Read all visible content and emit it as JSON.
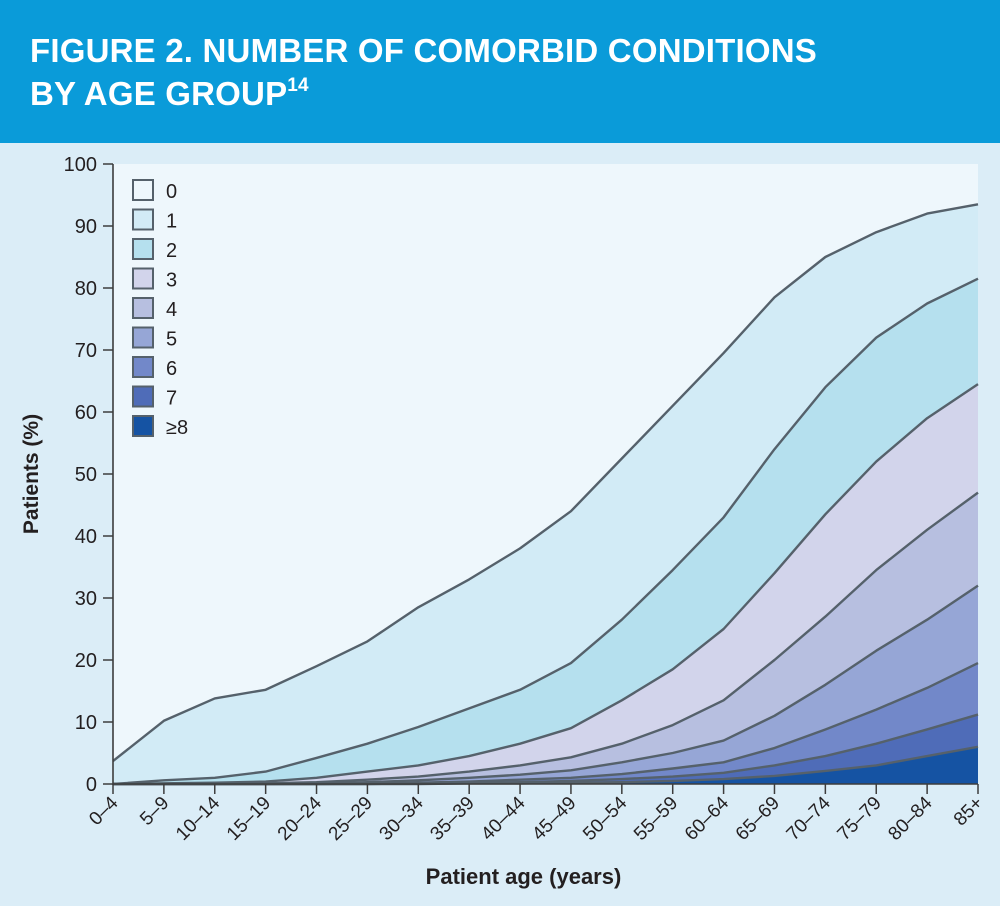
{
  "figure": {
    "title_line1": "FIGURE 2. NUMBER OF COMORBID CONDITIONS",
    "title_line2": "BY AGE GROUP",
    "reference": "14"
  },
  "colors": {
    "header_bg": "#0a9bd9",
    "panel_bg": "#dbedf7",
    "plot_bg": "#eef7fc",
    "outline": "#55616b",
    "layer_fills": [
      "#eef7fc",
      "#d2ebf6",
      "#b5e0ee",
      "#d2d4eb",
      "#b7bfe0",
      "#96a6d6",
      "#7288c9",
      "#4f6cb8",
      "#1553a3"
    ]
  },
  "chart_data": {
    "type": "area",
    "stacking": "cumulative",
    "title": "FIGURE 2. NUMBER OF COMORBID CONDITIONS BY AGE GROUP",
    "xlabel": "Patient age (years)",
    "ylabel": "Patients (%)",
    "ylim": [
      0,
      100
    ],
    "yticks": [
      0,
      10,
      20,
      30,
      40,
      50,
      60,
      70,
      80,
      90,
      100
    ],
    "grid": false,
    "legend_position": "top-left",
    "categories": [
      "0–4",
      "5–9",
      "10–14",
      "15–19",
      "20–24",
      "25–29",
      "30–34",
      "35–39",
      "40–44",
      "45–49",
      "50–54",
      "55–59",
      "60–64",
      "65–69",
      "70–74",
      "75–79",
      "80–84",
      "85+"
    ],
    "series": [
      {
        "name": "0",
        "cumulative_top": [
          100,
          100,
          100,
          100,
          100,
          100,
          100,
          100,
          100,
          100,
          100,
          100,
          100,
          100,
          100,
          100,
          100,
          100
        ]
      },
      {
        "name": "1",
        "cumulative_top": [
          3.7,
          10.2,
          13.8,
          15.2,
          19,
          23,
          28.5,
          33,
          38,
          44,
          52.5,
          61,
          69.5,
          78.5,
          85,
          89,
          92,
          93.5
        ]
      },
      {
        "name": "2",
        "cumulative_top": [
          0,
          0.6,
          1,
          2,
          4.2,
          6.5,
          9.2,
          12.2,
          15.2,
          19.5,
          26.5,
          34.5,
          43,
          54,
          64,
          72,
          77.5,
          81.5
        ]
      },
      {
        "name": "3",
        "cumulative_top": [
          0,
          0.1,
          0.2,
          0.4,
          1,
          2,
          3,
          4.5,
          6.5,
          9,
          13.5,
          18.5,
          25,
          34,
          43.5,
          52,
          59,
          64.5
        ]
      },
      {
        "name": "4",
        "cumulative_top": [
          0,
          0,
          0,
          0.1,
          0.3,
          0.7,
          1.2,
          2,
          3,
          4.3,
          6.5,
          9.5,
          13.5,
          20,
          27,
          34.5,
          41,
          47
        ]
      },
      {
        "name": "5",
        "cumulative_top": [
          0,
          0,
          0,
          0,
          0.1,
          0.3,
          0.6,
          1,
          1.5,
          2.2,
          3.5,
          5,
          7,
          11,
          16,
          21.5,
          26.5,
          32
        ]
      },
      {
        "name": "6",
        "cumulative_top": [
          0,
          0,
          0,
          0,
          0,
          0.1,
          0.2,
          0.4,
          0.7,
          1,
          1.6,
          2.5,
          3.5,
          5.8,
          8.8,
          12,
          15.5,
          19.5
        ]
      },
      {
        "name": "7",
        "cumulative_top": [
          0,
          0,
          0,
          0,
          0,
          0,
          0.1,
          0.2,
          0.3,
          0.5,
          0.8,
          1.2,
          1.8,
          3,
          4.5,
          6.5,
          8.8,
          11.2
        ]
      },
      {
        "name": "≥8",
        "cumulative_top": [
          0,
          0,
          0,
          0,
          0,
          0,
          0,
          0.1,
          0.1,
          0.2,
          0.3,
          0.5,
          0.8,
          1.3,
          2.1,
          3,
          4.5,
          6
        ]
      }
    ]
  }
}
